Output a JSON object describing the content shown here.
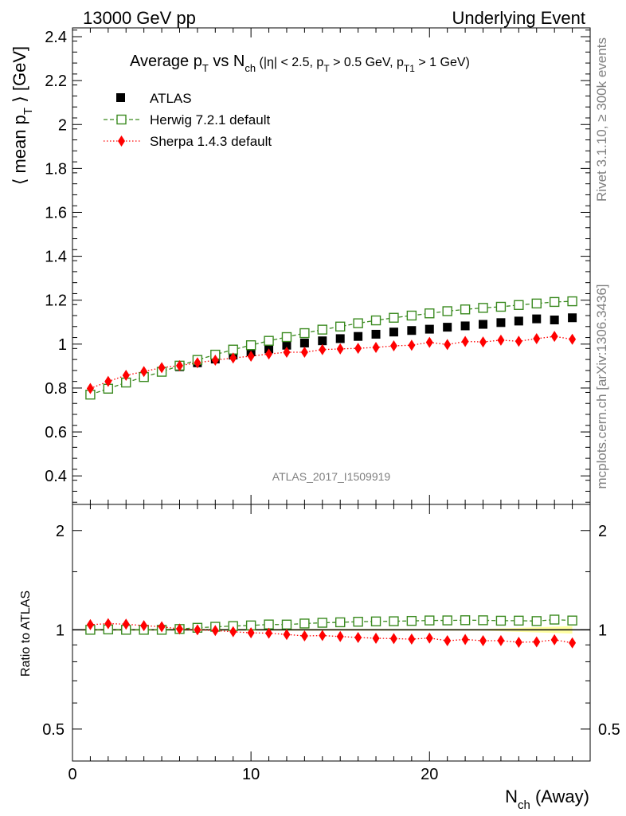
{
  "header": {
    "left": "13000 GeV pp",
    "right": "Underlying Event"
  },
  "side": {
    "rivet": "Rivet 3.1.10, ≥ 300k events",
    "mcplots": "mcplots.cern.ch [arXiv:1306.3436]"
  },
  "chart_data": {
    "type": "scatter",
    "title_parts": {
      "a": "Average p",
      "a_sub": "T",
      "b": " vs N",
      "b_sub": "ch",
      "c": " (|η| < 2.5, p",
      "c_sub": "T",
      "d": " > 0.5 GeV, p",
      "d_sub": "T1",
      "e": " > 1 GeV)"
    },
    "ylabel_parts": {
      "a": "⟨ mean p",
      "sub": "T",
      "b": " ⟩ [GeV]"
    },
    "xlabel_parts": {
      "a": "N",
      "sub": "ch",
      "b": " (Away)"
    },
    "ratio_ylabel": "Ratio to ATLAS",
    "watermark": "ATLAS_2017_I1509919",
    "xlim": [
      0,
      29
    ],
    "ylim": [
      0.27,
      2.44
    ],
    "ratio_ylim": [
      0.4,
      2.4
    ],
    "x_ticks": [
      "0",
      "10",
      "20"
    ],
    "y_ticks": [
      "0.4",
      "0.6",
      "0.8",
      "1",
      "1.2",
      "1.4",
      "1.6",
      "1.8",
      "2",
      "2.2",
      "2.4"
    ],
    "ratio_ticks": [
      "0.5",
      "1",
      "2"
    ],
    "x": [
      1,
      2,
      3,
      4,
      5,
      6,
      7,
      8,
      9,
      10,
      11,
      12,
      13,
      14,
      15,
      16,
      17,
      18,
      19,
      20,
      21,
      22,
      23,
      24,
      25,
      26,
      27,
      28
    ],
    "series": [
      {
        "name": "ATLAS",
        "color": "#000000",
        "marker": "filled-square",
        "values": [
          0.77,
          0.795,
          0.825,
          0.85,
          0.874,
          0.897,
          0.915,
          0.932,
          0.95,
          0.965,
          0.978,
          0.995,
          1.005,
          1.015,
          1.025,
          1.035,
          1.045,
          1.055,
          1.062,
          1.068,
          1.077,
          1.083,
          1.09,
          1.098,
          1.105,
          1.115,
          1.11,
          1.12
        ]
      },
      {
        "name": "Herwig 7.2.1 default",
        "color": "#3a8a1f",
        "marker": "open-square",
        "values": [
          0.77,
          0.797,
          0.825,
          0.85,
          0.874,
          0.902,
          0.928,
          0.952,
          0.975,
          0.995,
          1.015,
          1.032,
          1.05,
          1.066,
          1.08,
          1.095,
          1.108,
          1.12,
          1.13,
          1.14,
          1.15,
          1.158,
          1.165,
          1.17,
          1.178,
          1.185,
          1.192,
          1.195
        ]
      },
      {
        "name": "Sherpa 1.4.3 default",
        "color": "#ff0000",
        "marker": "filled-diamond",
        "values": [
          0.798,
          0.83,
          0.858,
          0.875,
          0.893,
          0.902,
          0.915,
          0.927,
          0.937,
          0.945,
          0.955,
          0.963,
          0.963,
          0.975,
          0.978,
          0.981,
          0.985,
          0.992,
          0.995,
          1.008,
          0.998,
          1.012,
          1.01,
          1.018,
          1.013,
          1.025,
          1.035,
          1.022
        ]
      }
    ]
  }
}
